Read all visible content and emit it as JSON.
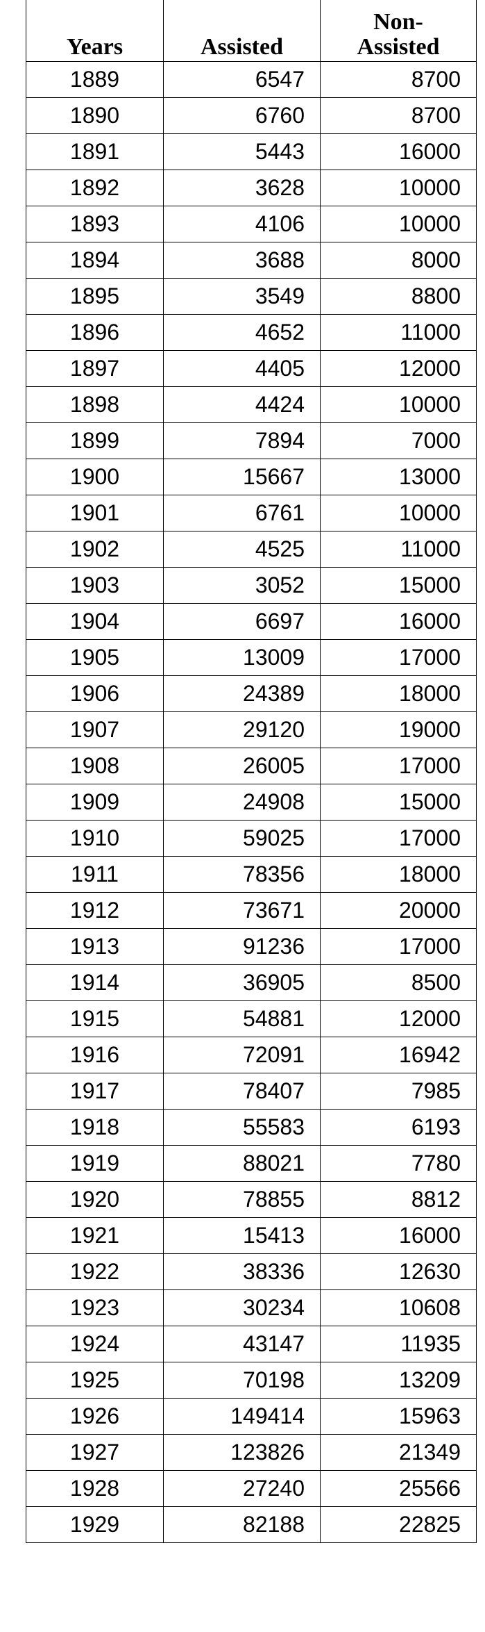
{
  "table": {
    "headers": [
      "Years",
      "Assisted",
      "Non-\nAssisted"
    ],
    "rows": [
      [
        1889,
        6547,
        8700
      ],
      [
        1890,
        6760,
        8700
      ],
      [
        1891,
        5443,
        16000
      ],
      [
        1892,
        3628,
        10000
      ],
      [
        1893,
        4106,
        10000
      ],
      [
        1894,
        3688,
        8000
      ],
      [
        1895,
        3549,
        8800
      ],
      [
        1896,
        4652,
        11000
      ],
      [
        1897,
        4405,
        12000
      ],
      [
        1898,
        4424,
        10000
      ],
      [
        1899,
        7894,
        7000
      ],
      [
        1900,
        15667,
        13000
      ],
      [
        1901,
        6761,
        10000
      ],
      [
        1902,
        4525,
        11000
      ],
      [
        1903,
        3052,
        15000
      ],
      [
        1904,
        6697,
        16000
      ],
      [
        1905,
        13009,
        17000
      ],
      [
        1906,
        24389,
        18000
      ],
      [
        1907,
        29120,
        19000
      ],
      [
        1908,
        26005,
        17000
      ],
      [
        1909,
        24908,
        15000
      ],
      [
        1910,
        59025,
        17000
      ],
      [
        1911,
        78356,
        18000
      ],
      [
        1912,
        73671,
        20000
      ],
      [
        1913,
        91236,
        17000
      ],
      [
        1914,
        36905,
        8500
      ],
      [
        1915,
        54881,
        12000
      ],
      [
        1916,
        72091,
        16942
      ],
      [
        1917,
        78407,
        7985
      ],
      [
        1918,
        55583,
        6193
      ],
      [
        1919,
        88021,
        7780
      ],
      [
        1920,
        78855,
        8812
      ],
      [
        1921,
        15413,
        16000
      ],
      [
        1922,
        38336,
        12630
      ],
      [
        1923,
        30234,
        10608
      ],
      [
        1924,
        43147,
        11935
      ],
      [
        1925,
        70198,
        13209
      ],
      [
        1926,
        149414,
        15963
      ],
      [
        1927,
        123826,
        21349
      ],
      [
        1928,
        27240,
        25566
      ],
      [
        1929,
        82188,
        22825
      ]
    ]
  }
}
